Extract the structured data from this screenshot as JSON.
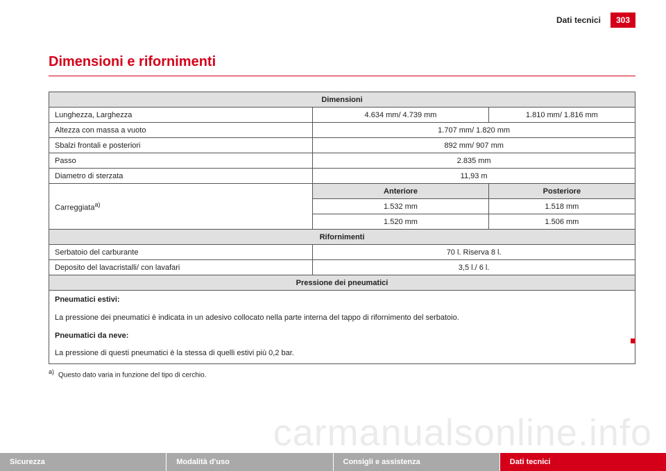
{
  "header": {
    "section": "Dati tecnici",
    "page_number": "303"
  },
  "section_title": "Dimensioni e rifornimenti",
  "table": {
    "dimensioni": {
      "header": "Dimensioni",
      "lunghezza_label": "Lunghezza, Larghezza",
      "lunghezza_v1": "4.634 mm/ 4.739 mm",
      "lunghezza_v2": "1.810 mm/ 1.816 mm",
      "altezza_label": "Altezza con massa a vuoto",
      "altezza_v": "1.707 mm/ 1.820 mm",
      "sbalzi_label": "Sbalzi frontali e posteriori",
      "sbalzi_v": "892 mm/ 907 mm",
      "passo_label": "Passo",
      "passo_v": "2.835 mm",
      "sterzata_label": "Diametro di sterzata",
      "sterzata_v": "11,93 m",
      "carreggiata_label": "Carreggiata",
      "carreggiata_fn": "a)",
      "anteriore_label": "Anteriore",
      "posteriore_label": "Posteriore",
      "carreggiata_r1_ant": "1.532 mm",
      "carreggiata_r1_post": "1.518 mm",
      "carreggiata_r2_ant": "1.520 mm",
      "carreggiata_r2_post": "1.506 mm"
    },
    "rifornimenti": {
      "header": "Rifornimenti",
      "serbatoio_label": "Serbatoio del carburante",
      "serbatoio_v": "70 l. Riserva 8 l.",
      "lavacristalli_label": "Deposito del lavacristalli/ con lavafari",
      "lavacristalli_v": "3,5 l./ 6 l."
    },
    "pressione": {
      "header": "Pressione dei pneumatici",
      "estivi_title": "Pneumatici estivi:",
      "estivi_text": "La pressione dei pneumatici è indicata in un adesivo collocato nella parte interna del tappo di rifornimento del serbatoio.",
      "neve_title": "Pneumatici da neve:",
      "neve_text": "La pressione di questi pneumatici è la stessa di quelli estivi più 0,2 bar."
    }
  },
  "footnote": {
    "marker": "a)",
    "text": "Questo dato varia in funzione del tipo di cerchio."
  },
  "bottom_tabs": {
    "t1": "Sicurezza",
    "t2": "Modalità d'uso",
    "t3": "Consigli e assistenza",
    "t4": "Dati tecnici"
  },
  "watermark": "carmanualsonline.info",
  "colors": {
    "accent": "#d4001a",
    "header_row": "#e0e0e0",
    "tab_inactive": "#a9a9a9",
    "border": "#555555",
    "text": "#222222",
    "background": "#ffffff"
  }
}
